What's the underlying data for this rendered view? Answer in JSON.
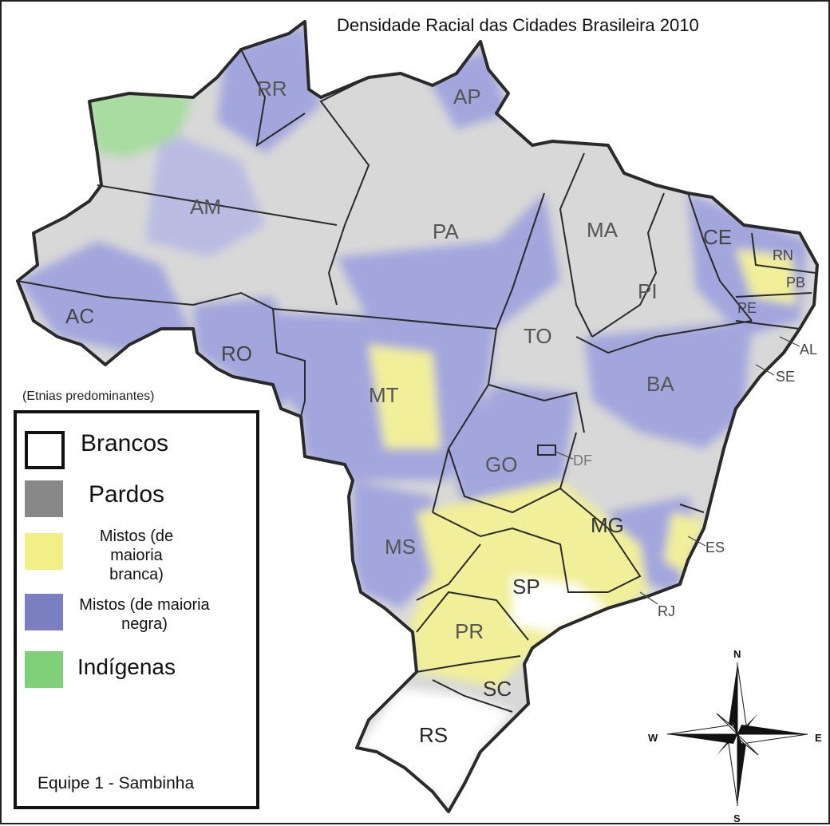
{
  "title": "Densidade Racial das Cidades Brasileira 2010",
  "legend": {
    "heading": "(Etnias predominantes)",
    "items": [
      {
        "label": "Brancos",
        "color": "#ffffff"
      },
      {
        "label": "Pardos",
        "color": "#888888"
      },
      {
        "label": "Mistos (de maioria branca)",
        "color": "#f1ef86"
      },
      {
        "label": "Mistos (de maioria negra)",
        "color": "#7b7fc2"
      },
      {
        "label": "Indígenas",
        "color": "#7fcf78"
      }
    ]
  },
  "credit": "Equipe 1 - Sambinha",
  "states": {
    "rr": "RR",
    "ap": "AP",
    "am": "AM",
    "pa": "PA",
    "ma": "MA",
    "ce": "CE",
    "rn": "RN",
    "pb": "PB",
    "pi": "PI",
    "pe": "PE",
    "ac": "AC",
    "to": "TO",
    "al": "AL",
    "ro": "RO",
    "ba": "BA",
    "se": "SE",
    "mt": "MT",
    "go": "GO",
    "df": "DF",
    "mg": "MG",
    "es": "ES",
    "ms": "MS",
    "sp": "SP",
    "rj": "RJ",
    "pr": "PR",
    "sc": "SC",
    "rs": "RS"
  },
  "compass": {
    "n": "N",
    "s": "S",
    "e": "E",
    "w": "W"
  },
  "colors": {
    "white": "#ffffff",
    "pardos": "#d5d5d5",
    "mistos_branca": "#f1ef9a",
    "mistos_negra": "#a3a6dd",
    "indigenas": "#a8dca0",
    "border": "#2a2a2a"
  }
}
